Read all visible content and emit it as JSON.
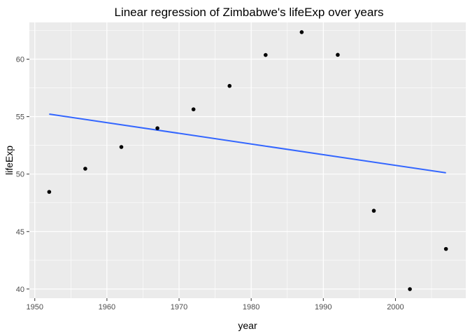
{
  "chart_data": {
    "type": "scatter",
    "title": "Linear regression of Zimbabwe's lifeExp over years",
    "xlabel": "year",
    "ylabel": "lifeExp",
    "xlim": [
      1949.25,
      2009.75
    ],
    "ylim": [
      39.2,
      63.2
    ],
    "x_ticks": [
      1950,
      1960,
      1970,
      1980,
      1990,
      2000
    ],
    "y_ticks": [
      40,
      45,
      50,
      55,
      60
    ],
    "grid": true,
    "legend": "none",
    "points": [
      {
        "x": 1952,
        "y": 48.451
      },
      {
        "x": 1957,
        "y": 50.469
      },
      {
        "x": 1962,
        "y": 52.358
      },
      {
        "x": 1967,
        "y": 53.995
      },
      {
        "x": 1972,
        "y": 55.635
      },
      {
        "x": 1977,
        "y": 57.674
      },
      {
        "x": 1982,
        "y": 60.363
      },
      {
        "x": 1987,
        "y": 62.351
      },
      {
        "x": 1992,
        "y": 60.377
      },
      {
        "x": 1997,
        "y": 46.809
      },
      {
        "x": 2002,
        "y": 39.989
      },
      {
        "x": 2007,
        "y": 43.487
      }
    ],
    "regression_line": {
      "x": [
        1952,
        2007
      ],
      "y": [
        55.22,
        50.11
      ]
    },
    "colors": {
      "panel": "#ebebeb",
      "grid": "#ffffff",
      "point": "#000000",
      "line": "#3366ff",
      "tick": "#333333",
      "tick_label": "#4d4d4d"
    }
  }
}
